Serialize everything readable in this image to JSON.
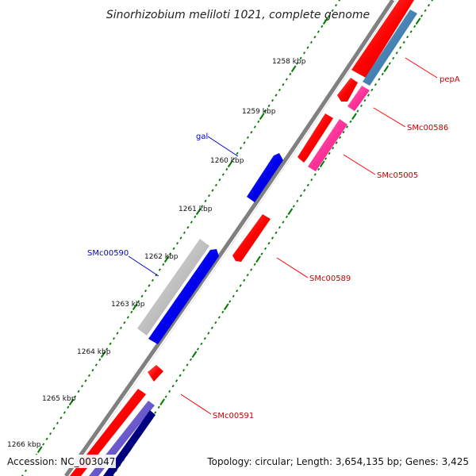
{
  "title": "Sinorhizobium meliloti 1021, complete genome",
  "footer": {
    "accession": "Accession: NC_003047",
    "topology": "Topology: circular; Length: 3,654,135 bp; Genes: 3,425"
  },
  "ticks": [
    "1258 kbp",
    "1259 kbp",
    "1260 kbp",
    "1261 kbp",
    "1262 kbp",
    "1263 kbp",
    "1264 kbp",
    "1265 kbp",
    "1266 kbp"
  ],
  "features": {
    "pepA": "pepA",
    "SMc00586": "SMc00586",
    "SMc05005": "SMc05005",
    "SMc00589": "SMc00589",
    "gal": "gal",
    "SMc00590": "SMc00590",
    "SMc00591": "SMc00591"
  },
  "colors": {
    "gene": "#ff0000",
    "cds": "#ff3399",
    "blue": "#0000ee",
    "steelblue": "#4682b4",
    "grey": "#c0c0c0",
    "navy": "#000080",
    "slate": "#6a5acd",
    "tick": "#007700",
    "backbone": "#808080"
  }
}
